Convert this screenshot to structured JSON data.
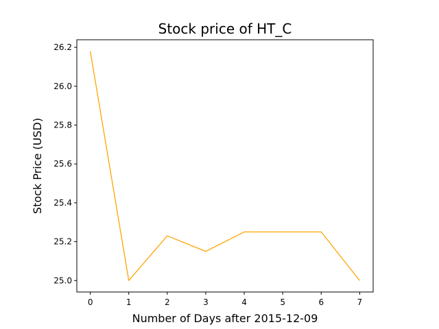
{
  "chart_data": {
    "type": "line",
    "title": "Stock price of HT_C",
    "xlabel": "Number of Days after 2015-12-09",
    "ylabel": "Stock Price (USD)",
    "x": [
      0,
      1,
      2,
      3,
      4,
      5,
      6,
      7
    ],
    "series": [
      {
        "values": [
          26.18,
          25.0,
          25.23,
          25.15,
          25.25,
          25.25,
          25.25,
          25.0
        ],
        "color": "#ffa500"
      }
    ],
    "xticks": [
      "0",
      "1",
      "2",
      "3",
      "4",
      "5",
      "6",
      "7"
    ],
    "yticks": [
      "25.0",
      "25.2",
      "25.4",
      "25.6",
      "25.8",
      "26.0",
      "26.2"
    ],
    "xlim": [
      -0.35,
      7.35
    ],
    "ylim": [
      24.941,
      26.239
    ],
    "grid": false
  }
}
